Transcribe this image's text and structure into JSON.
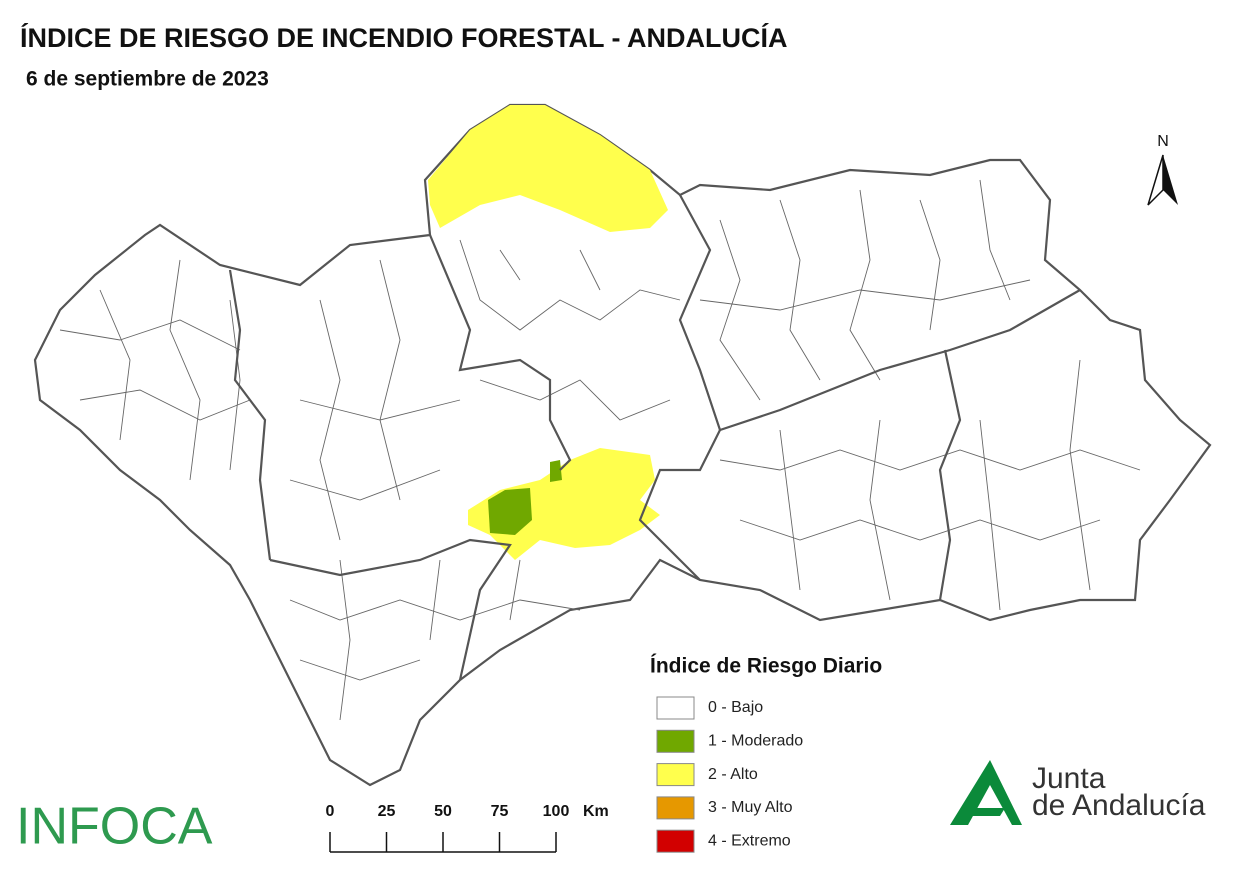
{
  "header": {
    "title": "ÍNDICE DE RIESGO DE INCENDIO FORESTAL - ANDALUCÍA",
    "subtitle": "6 de septiembre de 2023"
  },
  "map": {
    "north": "N"
  },
  "legend": {
    "title": "Índice de Riesgo Diario",
    "items": [
      {
        "label": "0 - Bajo",
        "color": "#ffffff"
      },
      {
        "label": "1 - Moderado",
        "color": "#70a800"
      },
      {
        "label": "2 - Alto",
        "color": "#ffff4d"
      },
      {
        "label": "3 - Muy Alto",
        "color": "#e69800"
      },
      {
        "label": "4 - Extremo",
        "color": "#d20000"
      }
    ]
  },
  "scale_bar": {
    "ticks": [
      0,
      25,
      50,
      75,
      100
    ],
    "unit": "Km"
  },
  "logos": {
    "infoca": "INFOCA",
    "junta": [
      "Junta",
      "de Andalucía"
    ]
  }
}
